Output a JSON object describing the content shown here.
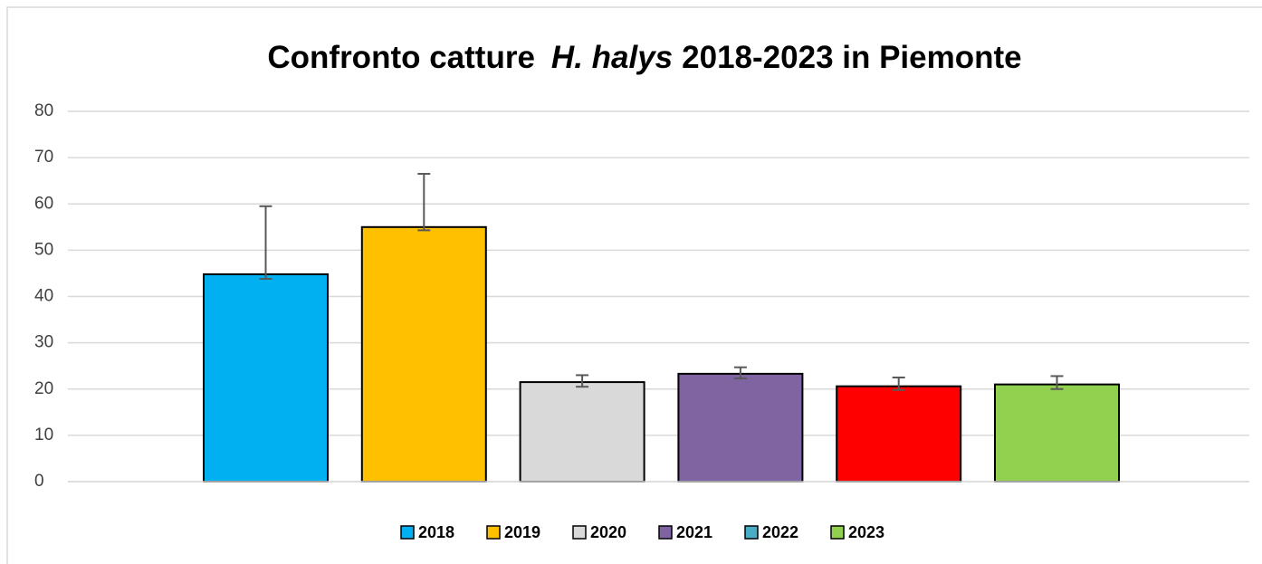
{
  "chart_data": {
    "type": "bar",
    "title": [
      "Confronto catture",
      "H. halys",
      "2018-2023 in Piemonte"
    ],
    "series": [
      {
        "name": "2018",
        "color": "#00b0f0",
        "values": [
          44.8
        ],
        "errors_plus": [
          14.7
        ],
        "errors_minus": [
          1.0
        ]
      },
      {
        "name": "2019",
        "color": "#ffc000",
        "values": [
          55.0
        ],
        "errors_plus": [
          11.5
        ],
        "errors_minus": [
          0.7
        ]
      },
      {
        "name": "2020",
        "color": "#d9d9d9",
        "values": [
          21.5
        ],
        "errors_plus": [
          1.5
        ],
        "errors_minus": [
          1.0
        ]
      },
      {
        "name": "2021",
        "color": "#8064a2",
        "values": [
          23.3
        ],
        "errors_plus": [
          1.4
        ],
        "errors_minus": [
          1.0
        ]
      },
      {
        "name": "2022",
        "color": "#ff0000",
        "legend_color": "#4bacc6",
        "values": [
          20.6
        ],
        "errors_plus": [
          1.9
        ],
        "errors_minus": [
          0.8
        ]
      },
      {
        "name": "2023",
        "color": "#92d050",
        "values": [
          21.0
        ],
        "errors_plus": [
          1.8
        ],
        "errors_minus": [
          1.0
        ]
      }
    ],
    "ylim": [
      0,
      80
    ],
    "yticks": [
      0,
      10,
      20,
      30,
      40,
      50,
      60,
      70,
      80
    ],
    "grid": true,
    "legend": "bottom"
  }
}
